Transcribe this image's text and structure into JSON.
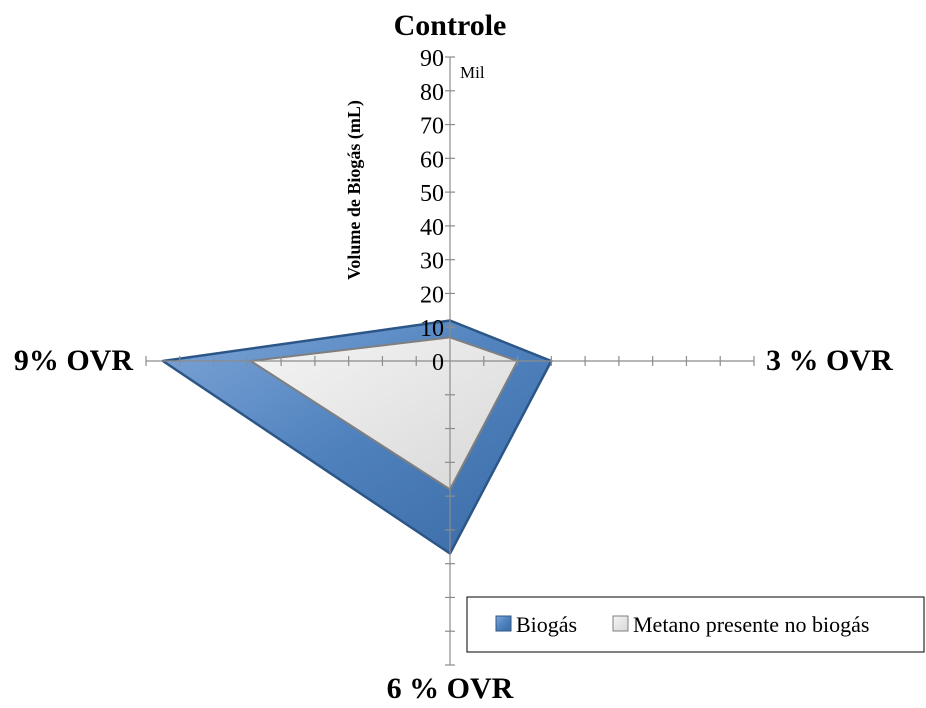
{
  "chart_data": {
    "type": "radar",
    "title": "",
    "categories": [
      "Controle",
      "3 % OVR",
      "6 % OVR",
      "9% OVR"
    ],
    "series": [
      {
        "name": "Biogás",
        "values": [
          12,
          30,
          57,
          85
        ]
      },
      {
        "name": "Metano presente no biogás",
        "values": [
          7,
          20,
          38,
          59
        ]
      }
    ],
    "ylabel": "Volume de Biogás (mL)",
    "unit_label": "Mil",
    "ylim": [
      0,
      90
    ],
    "ticks": [
      "0",
      "10",
      "20",
      "30",
      "40",
      "50",
      "60",
      "70",
      "80",
      "90"
    ],
    "legend_position": "bottom-right",
    "grid": false
  },
  "colors": {
    "biogas": "#4f81bd",
    "biogas_dark": "#2c5687",
    "metano": "#e3e3e3",
    "metano_dark": "#7f7f7f",
    "axis": "#8c8c8c"
  }
}
